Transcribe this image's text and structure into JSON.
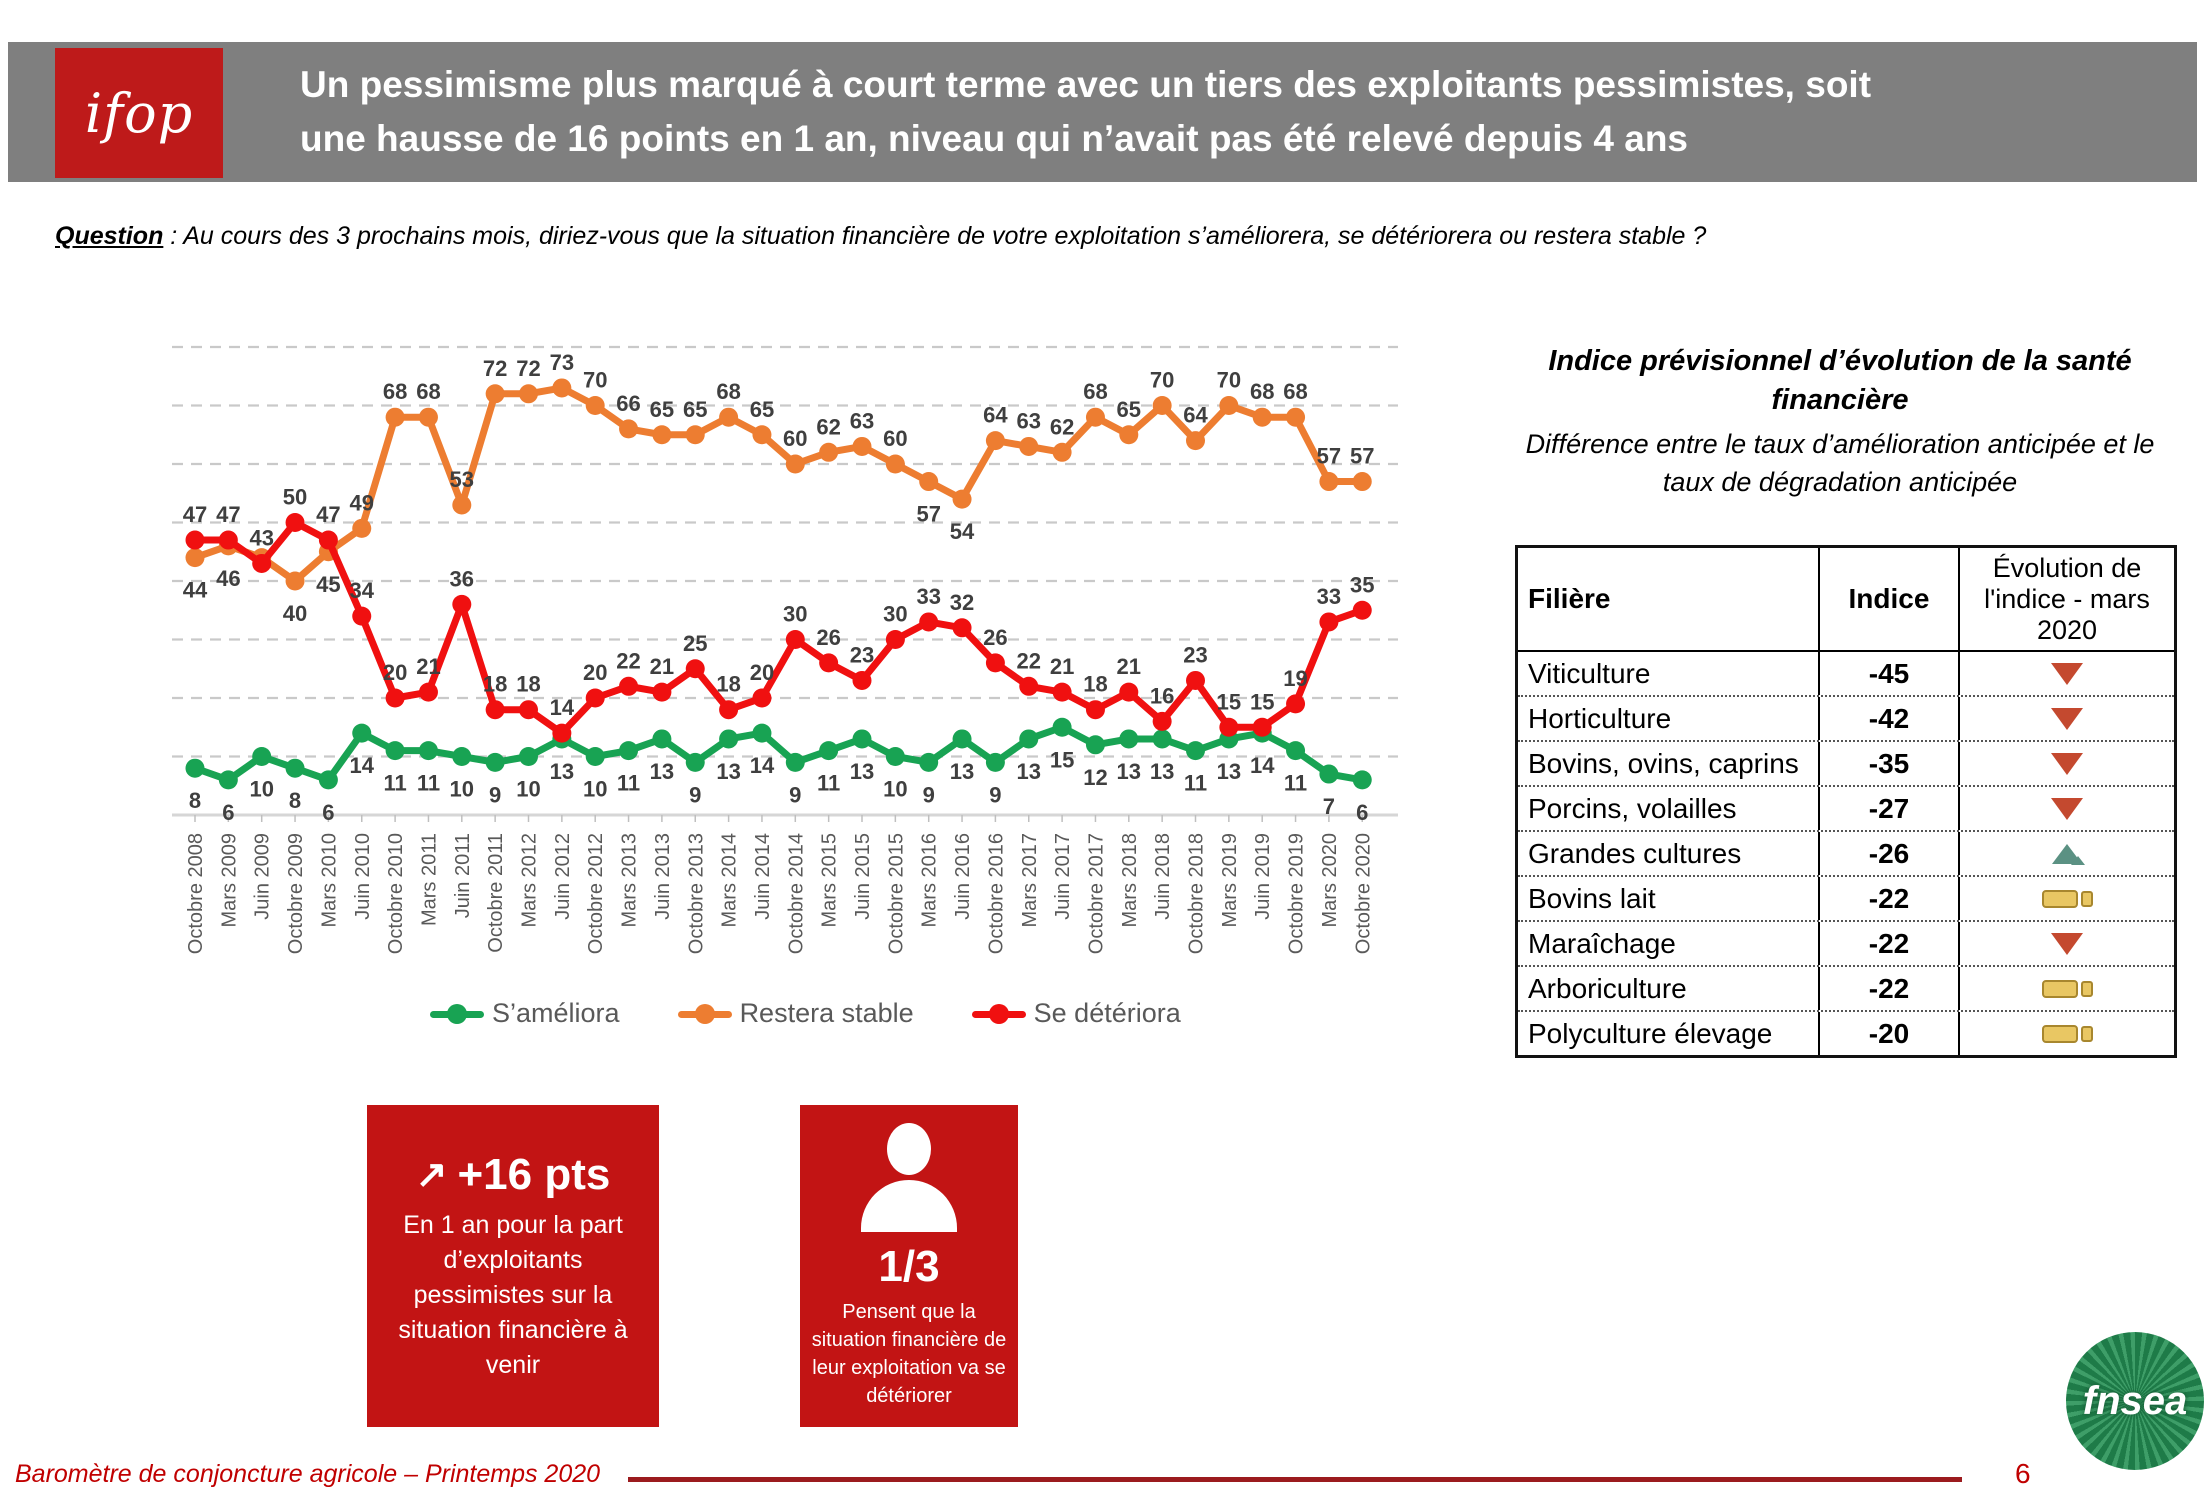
{
  "header": {
    "logo": "ifop",
    "title_line1": "Un pessimisme plus marqué à court terme avec un tiers des exploitants pessimistes, soit",
    "title_line2": "une hausse de 16 points en 1 an, niveau qui n’avait pas été relevé depuis 4 ans"
  },
  "question": {
    "label": "Question",
    "text": " : Au cours des 3 prochains mois, diriez-vous que la situation financière de votre exploitation s’améliorera, se détériorera ou restera stable ?"
  },
  "chart_data": {
    "type": "line",
    "title": "",
    "xlabel": "",
    "ylabel": "",
    "ylim": [
      0,
      80
    ],
    "grid": {
      "horizontal_step": 10,
      "style": "dashed"
    },
    "legend_position": "bottom",
    "x_tick_rotation": -90,
    "categories": [
      "Octobre 2008",
      "Mars 2009",
      "Juin 2009",
      "Octobre 2009",
      "Mars 2010",
      "Juin 2010",
      "Octobre 2010",
      "Mars 2011",
      "Juin 2011",
      "Octobre 2011",
      "Mars 2012",
      "Juin 2012",
      "Octobre 2012",
      "Mars 2013",
      "Juin 2013",
      "Octobre 2013",
      "Mars 2014",
      "Juin 2014",
      "Octobre 2014",
      "Mars 2015",
      "Juin 2015",
      "Octobre 2015",
      "Mars 2016",
      "Juin 2016",
      "Octobre 2016",
      "Mars 2017",
      "Juin 2017",
      "Octobre 2017",
      "Mars 2018",
      "Juin 2018",
      "Octobre 2018",
      "Mars 2019",
      "Juin 2019",
      "Octobre 2019",
      "Mars 2020",
      "Octobre 2020"
    ],
    "series": [
      {
        "name": "S’améliora",
        "key": "ameliora",
        "color": "#18A353",
        "values": [
          8,
          6,
          10,
          8,
          6,
          14,
          11,
          11,
          10,
          9,
          10,
          13,
          10,
          11,
          13,
          9,
          13,
          14,
          9,
          11,
          13,
          10,
          9,
          13,
          9,
          13,
          15,
          12,
          13,
          13,
          11,
          13,
          14,
          11,
          7,
          6
        ],
        "label_position": "below"
      },
      {
        "name": "Restera stable",
        "key": "stable",
        "color": "#ED7D31",
        "values": [
          44,
          46,
          44,
          40,
          45,
          49,
          68,
          68,
          53,
          72,
          72,
          73,
          70,
          66,
          65,
          65,
          68,
          65,
          60,
          62,
          63,
          60,
          57,
          54,
          64,
          63,
          62,
          68,
          65,
          70,
          64,
          70,
          68,
          68,
          57,
          57
        ],
        "label_position": "above",
        "labels_below": [
          0,
          1,
          3,
          4,
          22,
          23
        ],
        "labels_hidden": [
          2
        ]
      },
      {
        "name": "Se détériora",
        "key": "deteriora",
        "color": "#F01010",
        "values": [
          47,
          47,
          43,
          50,
          47,
          34,
          20,
          21,
          36,
          18,
          18,
          14,
          20,
          22,
          21,
          25,
          18,
          20,
          30,
          26,
          23,
          30,
          33,
          32,
          26,
          22,
          21,
          18,
          21,
          16,
          23,
          15,
          15,
          19,
          33,
          35
        ],
        "label_position": "above"
      }
    ]
  },
  "side_panel": {
    "title": "Indice prévisionnel d’évolution de la santé financière",
    "subtitle": "Différence entre le taux d’amélioration anticipée et le taux de dégradation anticipée",
    "table": {
      "columns": [
        "Filière",
        "Indice",
        "Évolution de l'indice - mars 2020"
      ],
      "rows": [
        {
          "filiere": "Viticulture",
          "indice": "-45",
          "evolution": "down"
        },
        {
          "filiere": "Horticulture",
          "indice": "-42",
          "evolution": "down"
        },
        {
          "filiere": "Bovins, ovins, caprins",
          "indice": "-35",
          "evolution": "down"
        },
        {
          "filiere": "Porcins, volailles",
          "indice": "-27",
          "evolution": "down"
        },
        {
          "filiere": "Grandes cultures",
          "indice": "-26",
          "evolution": "up"
        },
        {
          "filiere": "Bovins lait",
          "indice": "-22",
          "evolution": "stable"
        },
        {
          "filiere": "Maraîchage",
          "indice": "-22",
          "evolution": "down"
        },
        {
          "filiere": "Arboriculture",
          "indice": "-22",
          "evolution": "stable"
        },
        {
          "filiere": "Polyculture élevage",
          "indice": "-20",
          "evolution": "stable"
        }
      ]
    }
  },
  "callouts": [
    {
      "arrow": "↗",
      "headline": "+16 pts",
      "body": "En 1 an pour la part d’exploitants pessimistes sur la situation financière à venir"
    },
    {
      "icon": "person",
      "headline": "1/3",
      "body": "Pensent que la situation financière de leur exploitation va se détériorer"
    }
  ],
  "footer": {
    "source": "Baromètre de conjoncture agricole – Printemps 2020",
    "page_number": "6",
    "logo": "fnsea"
  },
  "colors": {
    "header_bar": "#7F7F7F",
    "brand_red": "#BE1A1A",
    "callout_red": "#C21414",
    "chart_green": "#18A353",
    "chart_orange": "#ED7D31",
    "chart_red": "#F01010",
    "grid_gray": "#C9C9C9",
    "label_gray": "#3F3F3F",
    "axis_gray": "#595959",
    "footer_rule": "#9B1B1E",
    "fnsea_green": "#1E7B48",
    "icon_down": "#C4492F",
    "icon_up": "#5B9183",
    "icon_stable": "#E9C763"
  }
}
